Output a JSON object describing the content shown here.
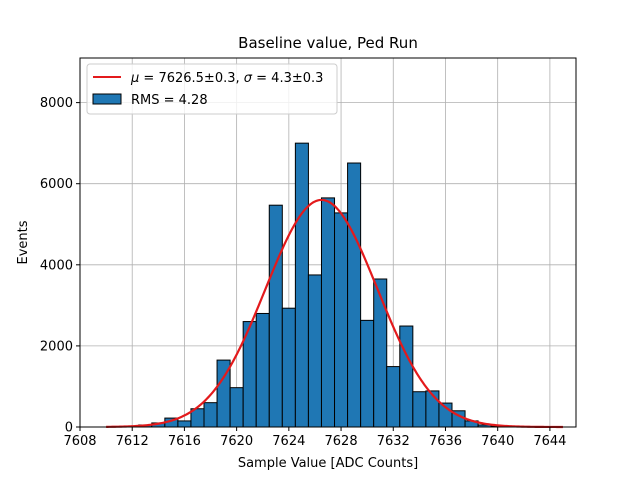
{
  "chart_data": {
    "type": "bar",
    "title": "Baseline value, Ped Run",
    "xlabel": "Sample Value [ADC Counts]",
    "ylabel": "Events",
    "xlim": [
      7608,
      7646
    ],
    "ylim": [
      0,
      9100
    ],
    "xticks": [
      "7608",
      "7612",
      "7616",
      "7620",
      "7624",
      "7628",
      "7632",
      "7636",
      "7640",
      "7644"
    ],
    "yticks": [
      "0",
      "2000",
      "4000",
      "6000",
      "8000"
    ],
    "grid": true,
    "legend_position": "top-left",
    "bin_width": 1,
    "bins": [
      {
        "x": 7613,
        "y": 50
      },
      {
        "x": 7614,
        "y": 100
      },
      {
        "x": 7615,
        "y": 220
      },
      {
        "x": 7616,
        "y": 150
      },
      {
        "x": 7617,
        "y": 450
      },
      {
        "x": 7618,
        "y": 600
      },
      {
        "x": 7619,
        "y": 1650
      },
      {
        "x": 7620,
        "y": 970
      },
      {
        "x": 7621,
        "y": 2600
      },
      {
        "x": 7622,
        "y": 2800
      },
      {
        "x": 7623,
        "y": 5470
      },
      {
        "x": 7624,
        "y": 2930
      },
      {
        "x": 7625,
        "y": 7000
      },
      {
        "x": 7626,
        "y": 3750
      },
      {
        "x": 7627,
        "y": 5650
      },
      {
        "x": 7628,
        "y": 5280
      },
      {
        "x": 7629,
        "y": 6510
      },
      {
        "x": 7630,
        "y": 2630
      },
      {
        "x": 7631,
        "y": 3650
      },
      {
        "x": 7632,
        "y": 1490
      },
      {
        "x": 7633,
        "y": 2490
      },
      {
        "x": 7634,
        "y": 870
      },
      {
        "x": 7635,
        "y": 890
      },
      {
        "x": 7636,
        "y": 590
      },
      {
        "x": 7637,
        "y": 400
      },
      {
        "x": 7638,
        "y": 150
      },
      {
        "x": 7639,
        "y": 50
      },
      {
        "x": 7640,
        "y": 20
      }
    ],
    "fit": {
      "mu": 7626.5,
      "sigma": 4.3,
      "amplitude": 5600,
      "x_range": [
        7610,
        7645
      ],
      "color": "#e31a1c"
    },
    "bar_color": "#1f77b4",
    "legend": [
      {
        "label_prefix": "μ = ",
        "mu_text": "7626.5±0.3",
        "sep": ", ",
        "sigma_prefix": "σ = ",
        "sigma_text": "4.3±0.3",
        "type": "line",
        "color": "#e31a1c"
      },
      {
        "label": "RMS = 4.28",
        "type": "patch",
        "color": "#1f77b4"
      }
    ]
  }
}
